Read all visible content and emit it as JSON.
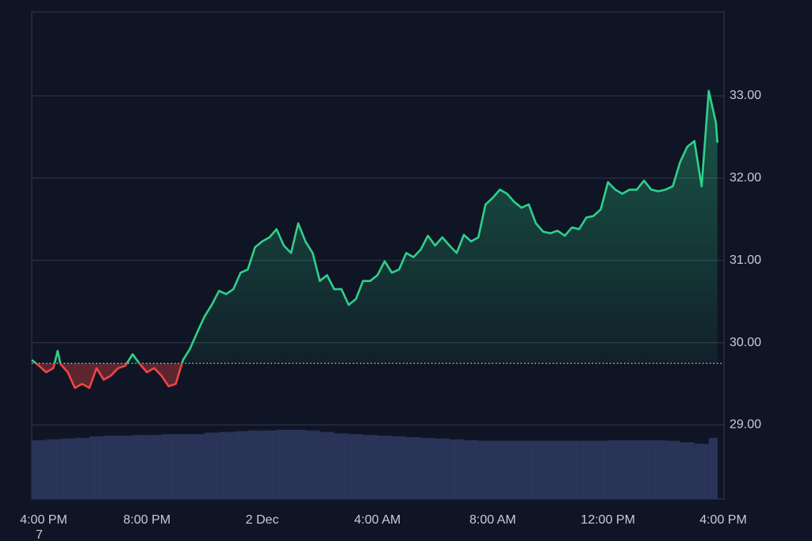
{
  "chart_data": {
    "type": "baseline-area",
    "x": [
      0,
      0.25,
      0.5,
      0.75,
      0.9,
      1,
      1.25,
      1.5,
      1.75,
      2,
      2.25,
      2.5,
      2.75,
      3,
      3.25,
      3.5,
      3.75,
      4,
      4.25,
      4.5,
      4.75,
      5,
      5.25,
      5.5,
      5.75,
      6,
      6.25,
      6.5,
      6.75,
      7,
      7.25,
      7.5,
      7.75,
      8,
      8.25,
      8.5,
      8.75,
      9,
      9.25,
      9.5,
      9.75,
      10,
      10.25,
      10.5,
      10.75,
      11,
      11.25,
      11.5,
      11.75,
      12,
      12.25,
      12.5,
      12.75,
      13,
      13.25,
      13.5,
      13.75,
      14,
      14.25,
      14.5,
      14.75,
      15,
      15.25,
      15.5,
      15.75,
      16,
      16.25,
      16.5,
      16.75,
      17,
      17.25,
      17.5,
      17.75,
      18,
      18.25,
      18.5,
      18.75,
      19,
      19.25,
      19.5,
      19.75,
      20,
      20.25,
      20.5,
      20.75,
      21,
      21.25,
      21.5,
      21.75,
      22,
      22.25,
      22.5,
      22.75,
      23,
      23.25,
      23.5,
      23.75,
      23.8
    ],
    "values": [
      29.79,
      29.72,
      29.64,
      29.69,
      29.9,
      29.74,
      29.64,
      29.45,
      29.5,
      29.45,
      29.69,
      29.55,
      29.6,
      29.69,
      29.72,
      29.86,
      29.74,
      29.64,
      29.69,
      29.6,
      29.47,
      29.5,
      29.79,
      29.93,
      30.13,
      30.32,
      30.46,
      30.63,
      30.59,
      30.65,
      30.85,
      30.89,
      31.16,
      31.23,
      31.28,
      31.38,
      31.18,
      31.09,
      31.45,
      31.23,
      31.09,
      30.75,
      30.82,
      30.65,
      30.65,
      30.46,
      30.53,
      30.75,
      30.75,
      30.82,
      30.99,
      30.85,
      30.89,
      31.09,
      31.04,
      31.13,
      31.3,
      31.18,
      31.28,
      31.18,
      31.09,
      31.31,
      31.23,
      31.28,
      31.68,
      31.76,
      31.86,
      31.81,
      31.71,
      31.64,
      31.68,
      31.45,
      31.35,
      31.33,
      31.36,
      31.3,
      31.4,
      31.38,
      31.52,
      31.54,
      31.62,
      31.95,
      31.86,
      31.81,
      31.86,
      31.86,
      31.97,
      31.86,
      31.84,
      31.86,
      31.9,
      32.19,
      32.38,
      32.45,
      31.9,
      33.06,
      32.67,
      32.43
    ],
    "baseline": 29.75,
    "up_color": "#2fd08a",
    "down_color": "#ef4444",
    "volume": {
      "x": [
        0,
        0.5,
        1,
        1.5,
        2,
        2.5,
        3,
        3.5,
        4,
        4.5,
        5,
        5.5,
        6,
        6.5,
        7,
        7.5,
        8,
        8.5,
        9,
        9.5,
        10,
        10.5,
        11,
        11.5,
        12,
        12.5,
        13,
        13.5,
        14,
        14.5,
        15,
        15.5,
        16,
        16.5,
        17,
        17.5,
        18,
        18.5,
        19,
        19.5,
        20,
        20.5,
        21,
        21.5,
        22,
        22.5,
        23,
        23.5
      ],
      "values": [
        80,
        81,
        82,
        83,
        85,
        86,
        86,
        87,
        87,
        88,
        88,
        88,
        90,
        91,
        92,
        93,
        93,
        94,
        94,
        93,
        91,
        89,
        88,
        87,
        86,
        85,
        84,
        83,
        82,
        81,
        80,
        79,
        79,
        79,
        79,
        79,
        79,
        79,
        79,
        79,
        80,
        80,
        80,
        80,
        79,
        77,
        75,
        83
      ],
      "ylim": [
        0,
        100
      ],
      "color": "#2a3458"
    },
    "xlim": [
      0,
      24
    ],
    "xticks": [
      {
        "value": 0,
        "label": "4:00 PM"
      },
      {
        "value": 4,
        "label": "8:00 PM"
      },
      {
        "value": 8,
        "label": "2 Dec"
      },
      {
        "value": 12,
        "label": "4:00 AM"
      },
      {
        "value": 16,
        "label": "8:00 AM"
      },
      {
        "value": 20,
        "label": "12:00 PM"
      },
      {
        "value": 24,
        "label": "4:00 PM"
      }
    ],
    "ylim": [
      28.1,
      34.02
    ],
    "yticks": [
      {
        "value": 29,
        "label": "29.00"
      },
      {
        "value": 30,
        "label": "30.00"
      },
      {
        "value": 31,
        "label": "31.00"
      },
      {
        "value": 32,
        "label": "32.00"
      },
      {
        "value": 33,
        "label": "33.00"
      }
    ],
    "grid": true,
    "annotation": "7"
  }
}
